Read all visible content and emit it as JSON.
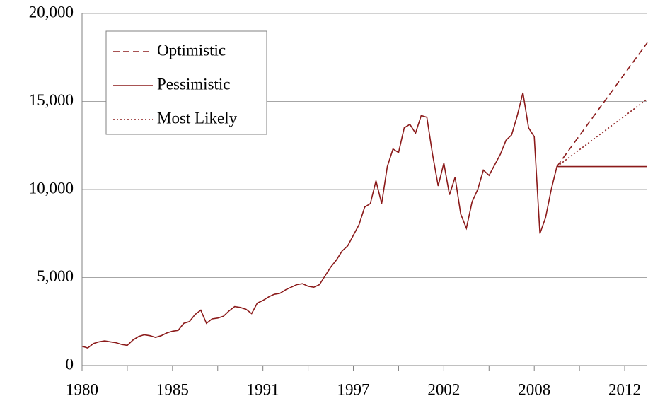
{
  "chart_data": {
    "type": "line",
    "categories": [
      "1980",
      null,
      null,
      null,
      null,
      null,
      null,
      null,
      null,
      null,
      null,
      null,
      null,
      null,
      null,
      null,
      "1985",
      null,
      null,
      null,
      null,
      null,
      null,
      null,
      null,
      null,
      null,
      null,
      null,
      null,
      null,
      null,
      "1991",
      null,
      null,
      null,
      null,
      null,
      null,
      null,
      null,
      null,
      null,
      null,
      null,
      null,
      null,
      null,
      "1997",
      null,
      null,
      null,
      null,
      null,
      null,
      null,
      null,
      null,
      null,
      null,
      null,
      null,
      null,
      null,
      "2002",
      null,
      null,
      null,
      null,
      null,
      null,
      null,
      null,
      null,
      null,
      null,
      null,
      null,
      null,
      null,
      "2008",
      null,
      null,
      null,
      null,
      null,
      null,
      null,
      null,
      null,
      null,
      null,
      null,
      null,
      null,
      null,
      "2012",
      null,
      null,
      null,
      null
    ],
    "series": [
      {
        "name": "Optimistic",
        "color": "#8b1a1a",
        "dash": "dashed",
        "values": [
          null,
          null,
          null,
          null,
          null,
          null,
          null,
          null,
          null,
          null,
          null,
          null,
          null,
          null,
          null,
          null,
          null,
          null,
          null,
          null,
          null,
          null,
          null,
          null,
          null,
          null,
          null,
          null,
          null,
          null,
          null,
          null,
          null,
          null,
          null,
          null,
          null,
          null,
          null,
          null,
          null,
          null,
          null,
          null,
          null,
          null,
          null,
          null,
          null,
          null,
          null,
          null,
          null,
          null,
          null,
          null,
          null,
          null,
          null,
          null,
          null,
          null,
          null,
          null,
          null,
          null,
          null,
          null,
          null,
          null,
          null,
          null,
          null,
          null,
          null,
          null,
          null,
          null,
          null,
          null,
          null,
          null,
          null,
          null,
          11300,
          11740,
          12180,
          12620,
          13060,
          13500,
          13940,
          14380,
          14820,
          15260,
          15700,
          16140,
          16580,
          17020,
          17460,
          17900,
          18340
        ]
      },
      {
        "name": "Pessimistic",
        "color": "#8b1a1a",
        "dash": "solid",
        "values": [
          1100,
          1000,
          1250,
          1350,
          1400,
          1350,
          1300,
          1200,
          1150,
          1450,
          1650,
          1750,
          1700,
          1600,
          1700,
          1850,
          1950,
          2000,
          2400,
          2500,
          2900,
          3150,
          2400,
          2650,
          2700,
          2800,
          3100,
          3350,
          3300,
          3200,
          2950,
          3550,
          3700,
          3900,
          4050,
          4100,
          4300,
          4450,
          4600,
          4650,
          4500,
          4450,
          4600,
          5100,
          5600,
          6000,
          6500,
          6800,
          7400,
          8000,
          9000,
          9200,
          10500,
          9200,
          11300,
          12300,
          12100,
          13500,
          13700,
          13200,
          14200,
          14100,
          12000,
          10200,
          11500,
          9700,
          10700,
          8600,
          7800,
          9300,
          10000,
          11100,
          10800,
          11400,
          12000,
          12800,
          13100,
          14200,
          15500,
          13500,
          13000,
          7500,
          8400,
          10000,
          11300,
          11300,
          11300,
          11300,
          11300,
          11300,
          11300,
          11300,
          11300,
          11300,
          11300,
          11300,
          11300,
          11300,
          11300,
          11300,
          11300
        ]
      },
      {
        "name": "Most Likely",
        "color": "#8b1a1a",
        "dash": "dotted",
        "values": [
          null,
          null,
          null,
          null,
          null,
          null,
          null,
          null,
          null,
          null,
          null,
          null,
          null,
          null,
          null,
          null,
          null,
          null,
          null,
          null,
          null,
          null,
          null,
          null,
          null,
          null,
          null,
          null,
          null,
          null,
          null,
          null,
          null,
          null,
          null,
          null,
          null,
          null,
          null,
          null,
          null,
          null,
          null,
          null,
          null,
          null,
          null,
          null,
          null,
          null,
          null,
          null,
          null,
          null,
          null,
          null,
          null,
          null,
          null,
          null,
          null,
          null,
          null,
          null,
          null,
          null,
          null,
          null,
          null,
          null,
          null,
          null,
          null,
          null,
          null,
          null,
          null,
          null,
          null,
          null,
          null,
          null,
          null,
          null,
          11300,
          11540,
          11780,
          12020,
          12260,
          12500,
          12740,
          12980,
          13220,
          13460,
          13700,
          13940,
          14180,
          14420,
          14660,
          14900,
          15140
        ]
      }
    ],
    "ylim": [
      0,
      20000
    ],
    "yticks": [
      0,
      {
        "value": 5000,
        "label": "5,000"
      },
      {
        "value": 10000,
        "label": "10,000"
      },
      {
        "value": 15000,
        "label": "15,000"
      },
      {
        "value": 20000,
        "label": "20,000"
      }
    ],
    "grid": true,
    "legend": "top-left"
  }
}
